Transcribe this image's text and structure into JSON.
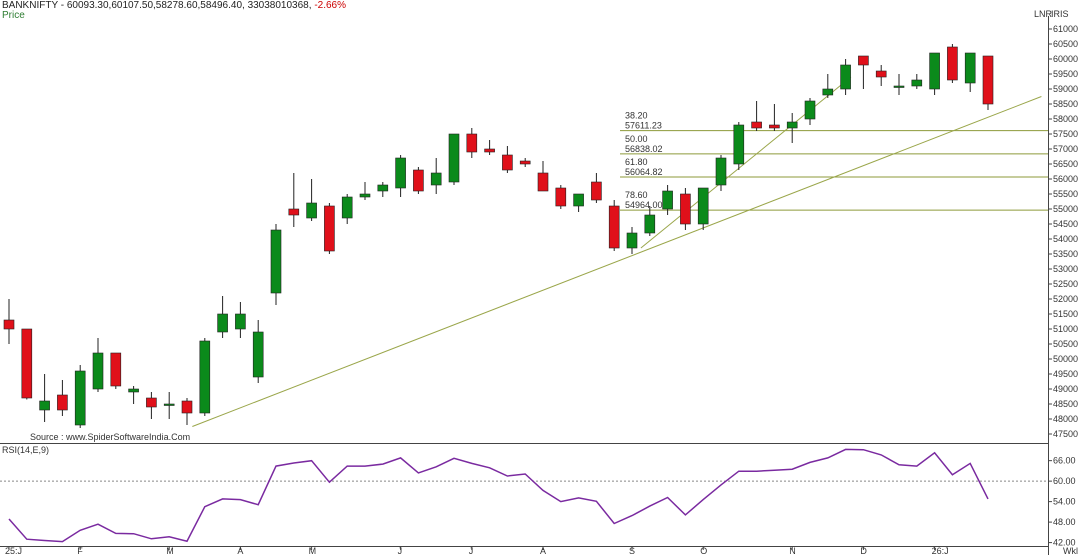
{
  "header": {
    "symbol": "BANKNIFTY",
    "ohlc": "60093.30,60107.50,58278.60,58496.40,",
    "volume": "33038010368,",
    "change": "-2.66%",
    "price_label": "Price",
    "scale_label": "LNR",
    "scale_label2": "IRIS",
    "rsi_label": "RSI(14,E,9)",
    "freq_label": "Wkl",
    "source": "Source : www.SpiderSoftwareIndia.Com"
  },
  "colors": {
    "up": "#0b8a1b",
    "down": "#e0101a",
    "trend": "#9aa64a",
    "fib": "#8d9a3a",
    "rsi": "#7a2aa0",
    "grid": "#bbbbbb"
  },
  "chart_data": [
    {
      "type": "candlestick",
      "ylim": [
        47200,
        61300
      ],
      "y_ticks": [
        47500,
        48000,
        48500,
        49000,
        49500,
        50000,
        50500,
        51000,
        51500,
        52000,
        52500,
        53000,
        53500,
        54000,
        54500,
        55000,
        55500,
        56000,
        56500,
        57000,
        57500,
        58000,
        58500,
        59000,
        59500,
        60000,
        60500,
        61000
      ],
      "x_month_labels": [
        {
          "label": "25:J",
          "index": 0
        },
        {
          "label": "F",
          "index": 4
        },
        {
          "label": "M",
          "index": 9
        },
        {
          "label": "A",
          "index": 13
        },
        {
          "label": "M",
          "index": 17
        },
        {
          "label": "J",
          "index": 22
        },
        {
          "label": "J",
          "index": 26
        },
        {
          "label": "A",
          "index": 30
        },
        {
          "label": "S",
          "index": 35
        },
        {
          "label": "O",
          "index": 39
        },
        {
          "label": "N",
          "index": 44
        },
        {
          "label": "D",
          "index": 48
        },
        {
          "label": "26:J",
          "index": 52
        }
      ],
      "candles": [
        [
          51300,
          52000,
          50500,
          51000
        ],
        [
          51000,
          51000,
          48650,
          48700
        ],
        [
          48300,
          49500,
          47900,
          48600
        ],
        [
          48800,
          49300,
          48100,
          48300
        ],
        [
          47800,
          49800,
          47700,
          49600
        ],
        [
          49000,
          50700,
          48900,
          50200
        ],
        [
          50200,
          50200,
          49000,
          49100
        ],
        [
          48900,
          49100,
          48500,
          49000
        ],
        [
          48700,
          48900,
          48000,
          48400
        ],
        [
          48500,
          48900,
          48000,
          48500
        ],
        [
          48600,
          48700,
          47800,
          48200
        ],
        [
          48200,
          50700,
          48100,
          50600
        ],
        [
          50900,
          52100,
          50700,
          51500
        ],
        [
          51000,
          51900,
          50700,
          51500
        ],
        [
          49400,
          51300,
          49200,
          50900
        ],
        [
          52200,
          54500,
          51800,
          54300
        ],
        [
          55000,
          56200,
          54400,
          54800
        ],
        [
          54700,
          56000,
          54600,
          55200
        ],
        [
          55100,
          55200,
          53500,
          53600
        ],
        [
          54700,
          55500,
          54500,
          55400
        ],
        [
          55400,
          55900,
          55300,
          55500
        ],
        [
          55600,
          55900,
          55400,
          55800
        ],
        [
          55700,
          56800,
          55400,
          56700
        ],
        [
          56300,
          56400,
          55500,
          55600
        ],
        [
          55800,
          56700,
          55500,
          56200
        ],
        [
          55900,
          57500,
          55800,
          57500
        ],
        [
          57500,
          57700,
          56700,
          56900
        ],
        [
          57000,
          57300,
          56800,
          56900
        ],
        [
          56800,
          57100,
          56200,
          56300
        ],
        [
          56600,
          56700,
          56400,
          56500
        ],
        [
          56200,
          56600,
          55600,
          55600
        ],
        [
          55700,
          55800,
          55000,
          55100
        ],
        [
          55100,
          55500,
          54900,
          55500
        ],
        [
          55900,
          56200,
          55200,
          55300
        ],
        [
          55100,
          55300,
          53600,
          53700
        ],
        [
          53700,
          54400,
          53500,
          54200
        ],
        [
          54200,
          55100,
          54100,
          54800
        ],
        [
          55000,
          55800,
          54800,
          55600
        ],
        [
          55500,
          55700,
          54300,
          54500
        ],
        [
          54500,
          55700,
          54300,
          55700
        ],
        [
          55800,
          56800,
          55600,
          56700
        ],
        [
          56500,
          57900,
          56300,
          57800
        ],
        [
          57900,
          58600,
          57600,
          57700
        ],
        [
          57800,
          58500,
          57600,
          57700
        ],
        [
          57700,
          58200,
          57200,
          57900
        ],
        [
          58000,
          58700,
          57800,
          58600
        ],
        [
          58800,
          59500,
          58700,
          59000
        ],
        [
          59000,
          60000,
          58800,
          59800
        ],
        [
          60100,
          60100,
          59000,
          59800
        ],
        [
          59600,
          59800,
          59100,
          59400
        ],
        [
          59100,
          59500,
          58800,
          59100
        ],
        [
          59100,
          59500,
          59000,
          59300
        ],
        [
          59000,
          60200,
          58800,
          60200
        ],
        [
          60400,
          60500,
          59200,
          59300
        ],
        [
          59200,
          60200,
          58900,
          60200
        ],
        [
          60100,
          60100,
          58300,
          58500
        ]
      ],
      "trendlines": [
        {
          "from": [
            10.3,
            47750
          ],
          "to": [
            58,
            58750
          ]
        },
        {
          "from": [
            35.5,
            53700
          ],
          "to": [
            47.3,
            59400
          ]
        }
      ],
      "fib_levels": [
        {
          "pct": "38.20",
          "value": "57611.23",
          "y": 57611.23
        },
        {
          "pct": "50.00",
          "value": "56838.02",
          "y": 56838.02
        },
        {
          "pct": "61.80",
          "value": "56064.82",
          "y": 56064.82
        },
        {
          "pct": "78.60",
          "value": "54964.00",
          "y": 54964
        }
      ]
    },
    {
      "type": "line",
      "series": [
        {
          "name": "RSI(14,E,9)",
          "values": [
            48.9,
            43.0,
            42.6,
            42.3,
            45.6,
            47.4,
            44.7,
            44.6,
            43.1,
            43.7,
            42.4,
            52.5,
            54.8,
            54.6,
            53.1,
            64.4,
            65.3,
            66.0,
            59.7,
            64.4,
            64.4,
            65.0,
            66.8,
            62.4,
            64.2,
            66.7,
            65.2,
            63.9,
            61.5,
            62.1,
            57.3,
            54.0,
            55.1,
            54.1,
            47.6,
            49.9,
            52.7,
            55.2,
            50.1,
            54.6,
            58.9,
            62.9,
            62.9,
            63.2,
            63.5,
            65.5,
            66.8,
            69.3,
            69.2,
            67.7,
            64.8,
            64.4,
            68.3,
            61.9,
            65.2,
            54.8
          ]
        }
      ],
      "ylim": [
        41.0,
        70.0
      ],
      "y_ticks": [
        42.0,
        48.0,
        54.0,
        60.0,
        66.0
      ],
      "reference_line": 60.0
    }
  ]
}
